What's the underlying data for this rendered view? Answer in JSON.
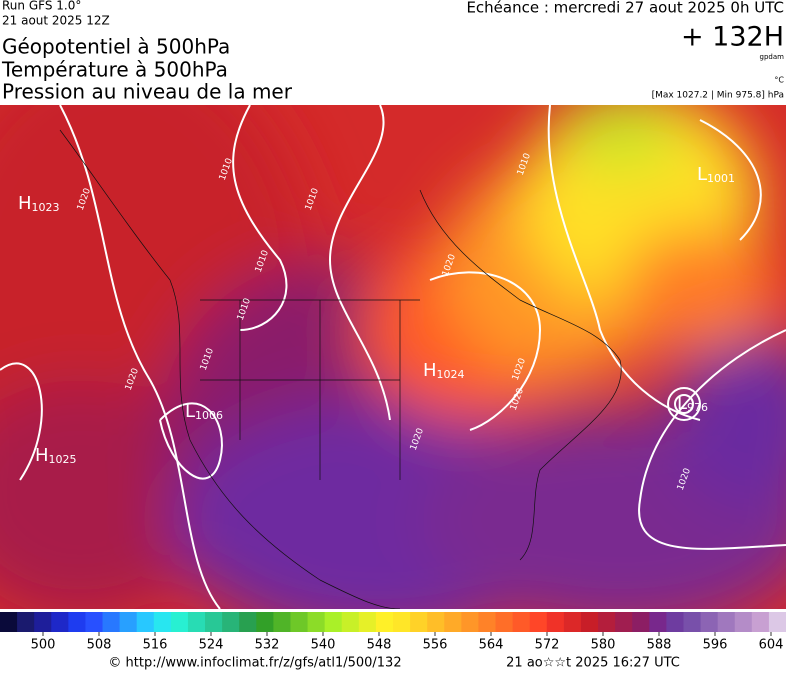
{
  "header": {
    "run": "Run GFS 1.0°",
    "run_date": "21 aout 2025 12Z",
    "titles": [
      "Géopotentiel à 500hPa",
      "Température à 500hPa",
      "Pression au niveau de la mer"
    ],
    "echeance": "Echéance : mercredi 27 aout 2025 0h UTC",
    "lead": "+ 132H",
    "unit_geo": "gpdam",
    "unit_temp": "°C",
    "extremes": "[Max 1027.2 | Min 975.8] hPa"
  },
  "pressure_centers": [
    {
      "letter": "H",
      "value": "1023"
    },
    {
      "letter": "H",
      "value": "1025"
    },
    {
      "letter": "H",
      "value": "1024"
    },
    {
      "letter": "L",
      "value": "1006"
    },
    {
      "letter": "L",
      "value": "1001"
    },
    {
      "letter": "L",
      "value": "976"
    }
  ],
  "isobar_labels": [
    "1010",
    "1020",
    "1010",
    "1010",
    "1010",
    "1020",
    "1020",
    "1010",
    "1020",
    "1020",
    "1020",
    "1010",
    "1020"
  ],
  "colorbar": {
    "ticks": [
      500,
      508,
      516,
      524,
      532,
      540,
      548,
      556,
      564,
      572,
      580,
      588,
      596,
      604
    ],
    "colors": [
      "#0a0a3a",
      "#1a1a6e",
      "#1e1e9a",
      "#1e28c8",
      "#1e3cf0",
      "#2850ff",
      "#2878ff",
      "#28a0ff",
      "#28c8ff",
      "#28e6f0",
      "#28f0d2",
      "#28dcb4",
      "#28c896",
      "#28b478",
      "#28a050",
      "#32a028",
      "#50b428",
      "#6ec828",
      "#8cdc28",
      "#aaf028",
      "#c8f028",
      "#e6f028",
      "#fff028",
      "#ffe628",
      "#ffd228",
      "#ffbe28",
      "#ffaa28",
      "#ff9628",
      "#ff8228",
      "#ff6e28",
      "#ff5a28",
      "#ff4628",
      "#f03228",
      "#dc2828",
      "#c81e28",
      "#b41e3c",
      "#a01e50",
      "#8c1e64",
      "#78288c",
      "#6e3ca0",
      "#7850aa",
      "#8c64b4",
      "#a078be",
      "#b48cc8",
      "#c8a0d2",
      "#dcc8e6"
    ]
  },
  "footer": {
    "url": "© http://www.infoclimat.fr/z/gfs/atl1/500/132",
    "generated": "21 ao☆☆t 2025 16:27 UTC"
  }
}
